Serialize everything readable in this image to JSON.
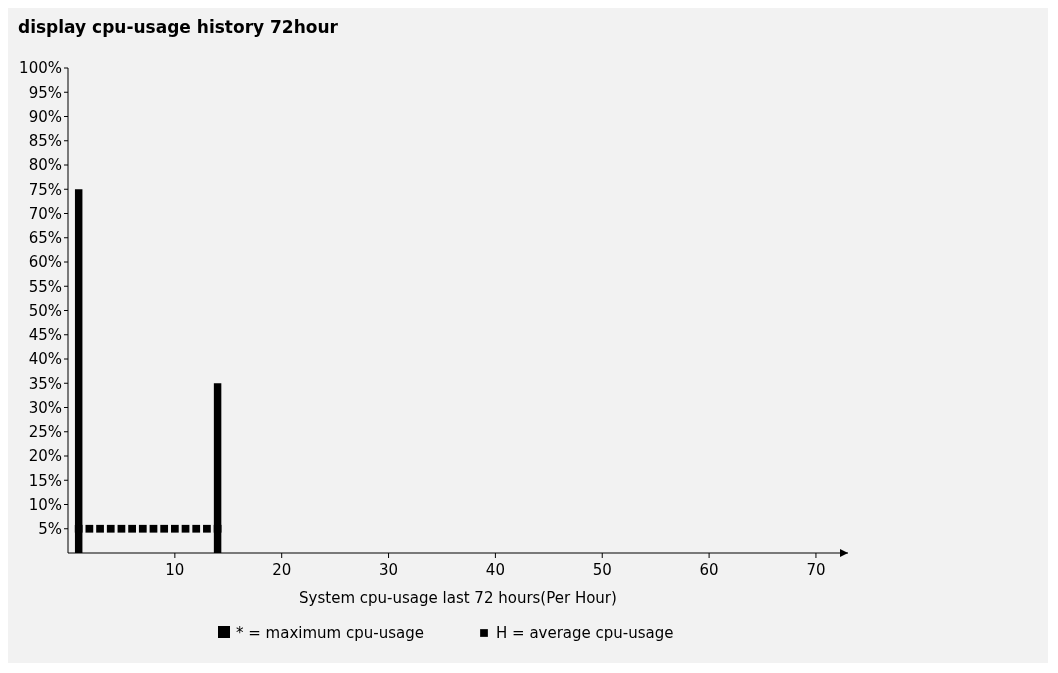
{
  "chart_data": {
    "type": "bar",
    "title": "display cpu-usage history 72hour",
    "xlabel": "System cpu-usage last 72 hours(Per Hour)",
    "x": [
      1,
      2,
      3,
      4,
      5,
      6,
      7,
      8,
      9,
      10,
      11,
      12,
      13,
      14
    ],
    "series": [
      {
        "name": "* = maximum cpu-usage",
        "color": "#000000",
        "values": [
          75,
          null,
          null,
          null,
          null,
          null,
          null,
          null,
          null,
          null,
          null,
          null,
          null,
          35
        ]
      },
      {
        "name": "H = average cpu-usage",
        "type": "scatter",
        "color": "#000000",
        "values": [
          5,
          5,
          5,
          5,
          5,
          5,
          5,
          5,
          5,
          5,
          5,
          5,
          5,
          5
        ]
      }
    ],
    "xlim": [
      0,
      73
    ],
    "xticks": [
      10,
      20,
      30,
      40,
      50,
      60,
      70
    ],
    "ylim": [
      0,
      100
    ],
    "yticks": [
      {
        "value": 5,
        "label": "5%"
      },
      {
        "value": 10,
        "label": "10%"
      },
      {
        "value": 15,
        "label": "15%"
      },
      {
        "value": 20,
        "label": "20%"
      },
      {
        "value": 25,
        "label": "25%"
      },
      {
        "value": 30,
        "label": "30%"
      },
      {
        "value": 35,
        "label": "35%"
      },
      {
        "value": 40,
        "label": "40%"
      },
      {
        "value": 45,
        "label": "45%"
      },
      {
        "value": 50,
        "label": "50%"
      },
      {
        "value": 55,
        "label": "55%"
      },
      {
        "value": 60,
        "label": "60%"
      },
      {
        "value": 65,
        "label": "65%"
      },
      {
        "value": 70,
        "label": "70%"
      },
      {
        "value": 75,
        "label": "75%"
      },
      {
        "value": 80,
        "label": "80%"
      },
      {
        "value": 85,
        "label": "85%"
      },
      {
        "value": 90,
        "label": "90%"
      },
      {
        "value": 95,
        "label": "95%"
      },
      {
        "value": 100,
        "label": "100%"
      }
    ],
    "grid": false,
    "legend": "bottom",
    "marker": "square"
  }
}
